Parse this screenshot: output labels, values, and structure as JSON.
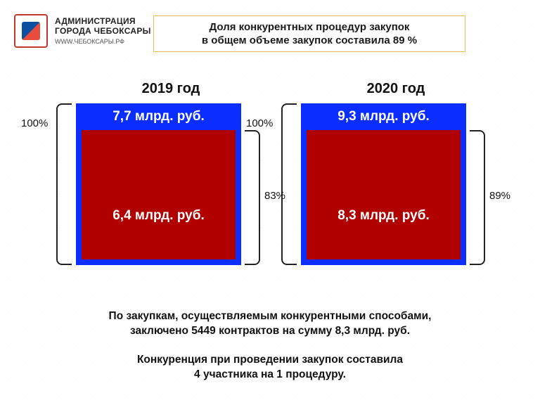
{
  "header": {
    "line1": "АДМИНИСТРАЦИЯ",
    "line2": "ГОРОДА ЧЕБОКСАРЫ",
    "line3": "WWW.ЧЕБОКСАРЫ.РФ"
  },
  "title": {
    "line1": "Доля конкурентных процедур закупок",
    "line2": "в общем объеме закупок составила 89 %",
    "border_color": "#e8c15a",
    "background_color": "#ffffff",
    "fontsize": 15
  },
  "chart": {
    "type": "nested-box-comparison",
    "background_color": "#ffffff",
    "outer_color": "#0a2eff",
    "inner_color": "#b00000",
    "text_color_on_box": "#ffffff",
    "label_fontsize": 19,
    "year_fontsize": 20,
    "pct_fontsize": 15,
    "brace_color": "#222222",
    "panels": [
      {
        "year": "2019 год",
        "total_label": "7,7 млрд. руб.",
        "inner_label": "6,4 млрд. руб.",
        "total_pct": "100%",
        "inner_pct": "83%",
        "total_value": 7.7,
        "inner_value": 6.4,
        "inner_share_percent": 83
      },
      {
        "year": "2020 год",
        "total_label": "9,3 млрд. руб.",
        "inner_label": "8,3 млрд. руб.",
        "total_pct": "100%",
        "inner_pct": "89%",
        "total_value": 9.3,
        "inner_value": 8.3,
        "inner_share_percent": 89
      }
    ]
  },
  "footer": {
    "p1_line1": "По закупкам, осуществляемым конкурентными способами,",
    "p1_line2": "заключено 5449 контрактов на сумму 8,3 млрд. руб.",
    "p2_line1": "Конкуренция при проведении закупок составила",
    "p2_line2": "4 участника на 1 процедуру.",
    "fontsize": 15.5,
    "color": "#111111"
  }
}
